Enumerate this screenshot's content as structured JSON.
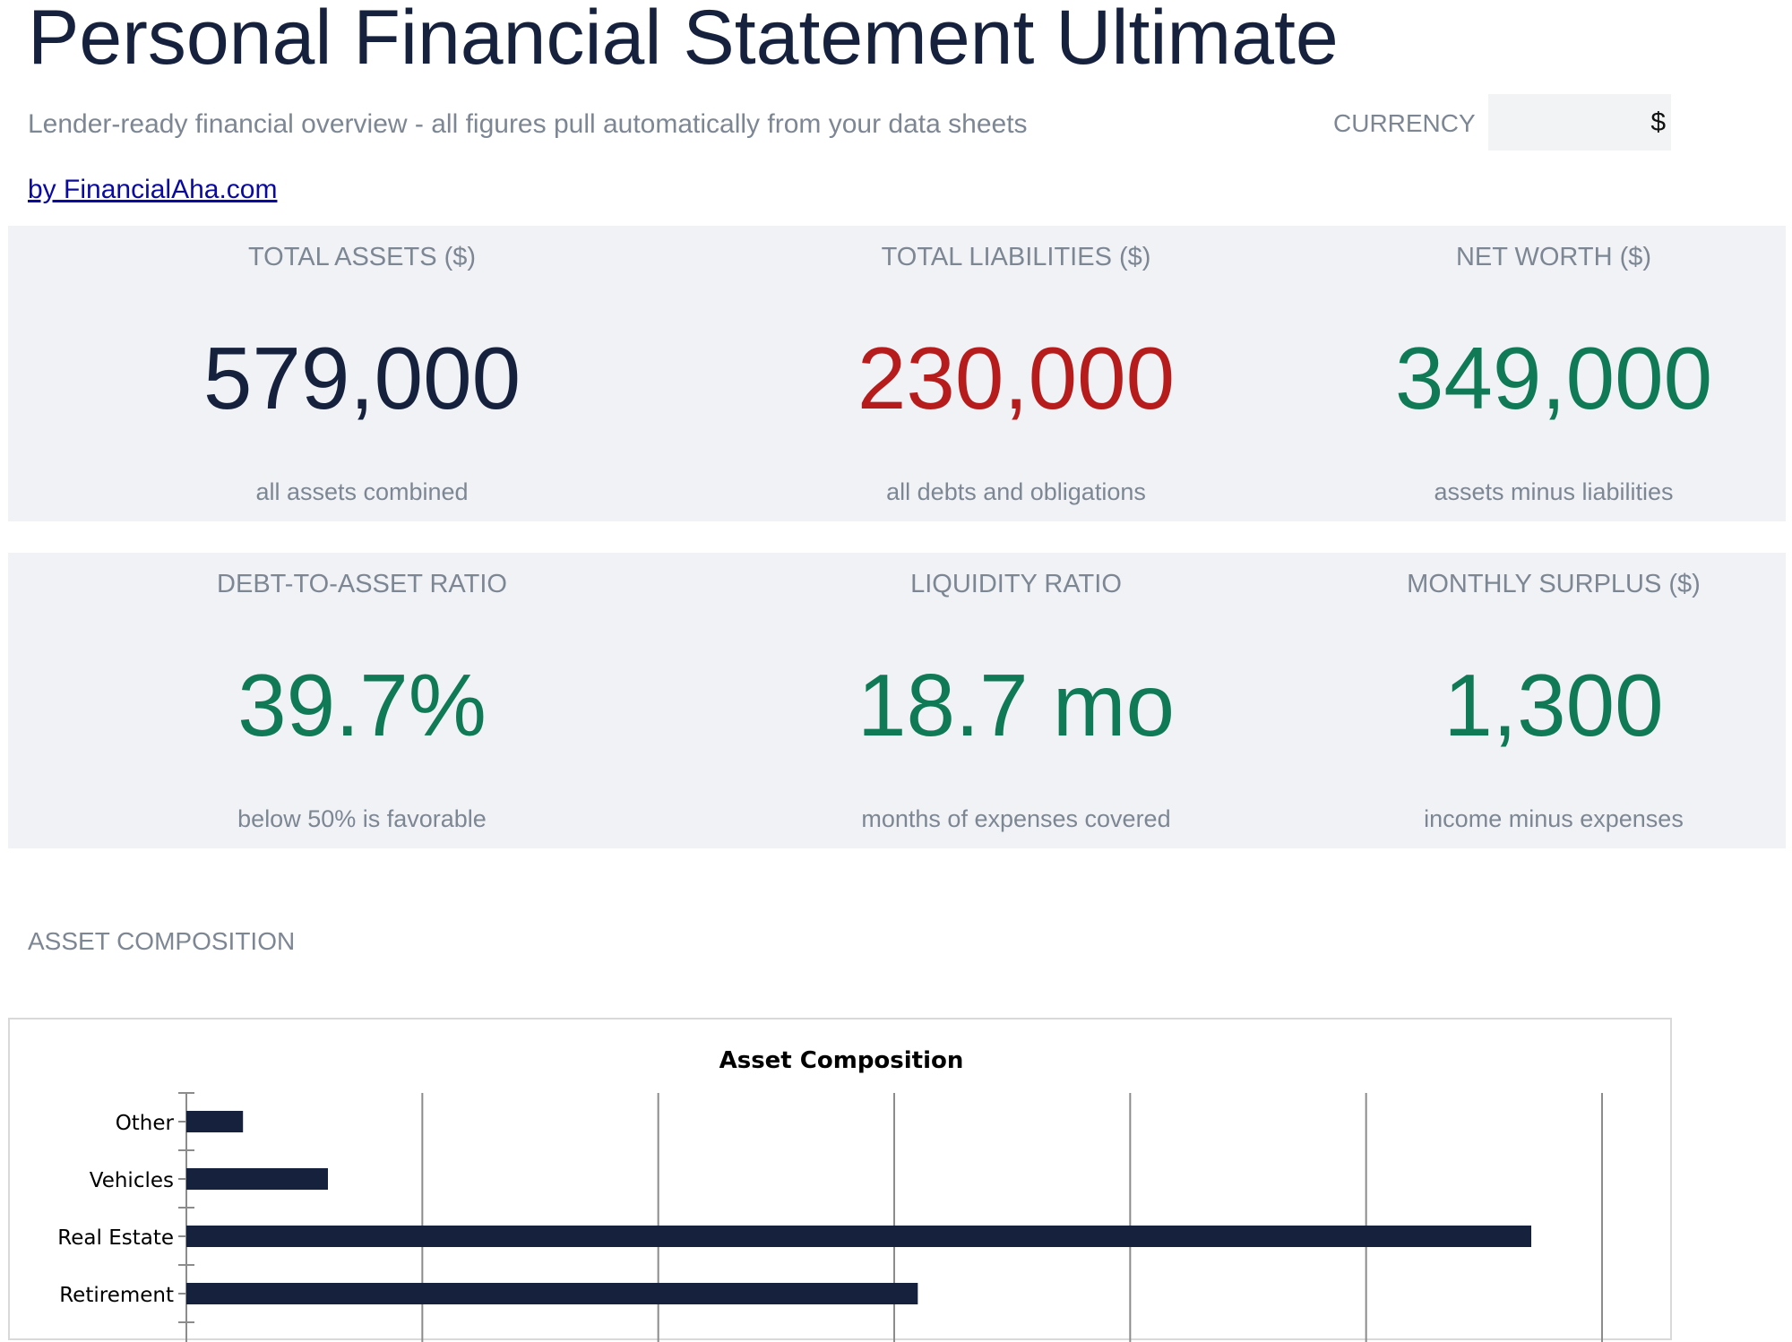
{
  "header": {
    "title": "Personal Financial Statement Ultimate",
    "subtitle": "Lender-ready financial overview - all figures pull automatically from your data sheets",
    "byline": "by FinancialAha.com",
    "currency_label": "CURRENCY",
    "currency_value": "$"
  },
  "colors": {
    "navy": "#16213e",
    "red": "#b71c1c",
    "green": "#0f7a55",
    "muted": "#7d8794",
    "card_bg": "#f0f2f5"
  },
  "metrics_row1": [
    {
      "label": "TOTAL ASSETS ($)",
      "value": "579,000",
      "desc": "all assets combined",
      "color": "#16213e"
    },
    {
      "label": "TOTAL LIABILITIES ($)",
      "value": "230,000",
      "desc": "all debts and obligations",
      "color": "#b71c1c"
    },
    {
      "label": "NET WORTH ($)",
      "value": "349,000",
      "desc": "assets minus liabilities",
      "color": "#0f7a55"
    }
  ],
  "metrics_row2": [
    {
      "label": "DEBT-TO-ASSET RATIO",
      "value": "39.7%",
      "desc": "below 50% is favorable",
      "color": "#0f7a55"
    },
    {
      "label": "LIQUIDITY RATIO",
      "value": "18.7 mo",
      "desc": "months of expenses covered",
      "color": "#0f7a55"
    },
    {
      "label": "MONTHLY SURPLUS ($)",
      "value": "1,300",
      "desc": "income minus expenses",
      "color": "#0f7a55"
    }
  ],
  "section": {
    "asset_composition_label": "ASSET COMPOSITION"
  },
  "chart_data": {
    "type": "bar",
    "orientation": "horizontal",
    "title": "Asset Composition",
    "xlabel": "",
    "ylabel": "",
    "categories": [
      "Other",
      "Vehicles",
      "Real Estate",
      "Retirement"
    ],
    "values": [
      12000,
      30000,
      285000,
      155000
    ],
    "xlim": [
      0,
      300000
    ],
    "gridlines": true,
    "bar_color": "#16213e"
  }
}
